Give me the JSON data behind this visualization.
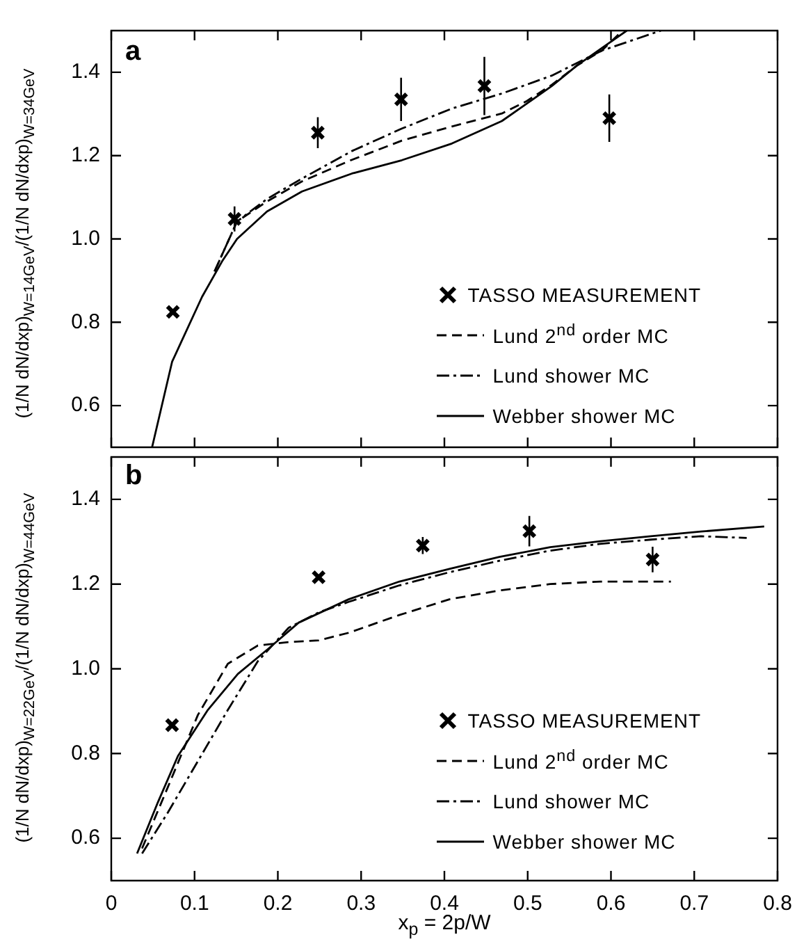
{
  "chart_data": [
    {
      "type": "line",
      "ylabel": "(1/N dN/dxp)$_{W=14GeV}$/(1/N dN/dxp)$_{W=34GeV}$",
      "annotations": [
        "a"
      ],
      "xlim": [
        0,
        0.8
      ],
      "xticks": [
        0,
        0.1,
        0.2,
        0.3,
        0.4,
        0.5,
        0.6,
        0.7,
        0.8
      ],
      "ylim": [
        0.5,
        1.5
      ],
      "yticks": [
        0.6,
        0.8,
        {
          "value": 1,
          "label": "1.0"
        },
        1.2,
        1.4
      ],
      "tick_labels": "y",
      "grid": false,
      "legend": "bottom right",
      "series": [
        {
          "name": "TASSO MEASUREMENT",
          "type": "scatter",
          "marker": "cross",
          "color": "#000000",
          "x": [
            0.074,
            0.148,
            0.248,
            0.348,
            0.448,
            0.598
          ],
          "values": [
            0.825,
            1.048,
            1.255,
            1.335,
            1.367,
            1.29
          ],
          "errors": [
            null,
            0.03,
            0.037,
            0.052,
            0.07,
            0.057
          ]
        },
        {
          "name": "Lund 2$^{nd}$ order MC",
          "type": "line",
          "marker": "none",
          "line_style": "dashed",
          "color": "#000000",
          "x": [
            0.124,
            0.151,
            0.187,
            0.229,
            0.289,
            0.349,
            0.409,
            0.469,
            0.499,
            0.529,
            0.559,
            0.589,
            0.614
          ],
          "values": [
            0.922,
            1.042,
            1.09,
            1.138,
            1.19,
            1.236,
            1.27,
            1.301,
            1.331,
            1.37,
            1.416,
            1.452,
            1.5
          ]
        },
        {
          "name": "Lund shower MC",
          "type": "line",
          "marker": "none",
          "line_style": "dashdot",
          "color": "#000000",
          "x": [
            0.124,
            0.151,
            0.187,
            0.229,
            0.289,
            0.349,
            0.409,
            0.469,
            0.529,
            0.559,
            0.589,
            0.66
          ],
          "values": [
            0.922,
            1.042,
            1.096,
            1.145,
            1.211,
            1.265,
            1.313,
            1.349,
            1.392,
            1.422,
            1.452,
            1.5
          ]
        },
        {
          "name": "Webber shower MC",
          "type": "line",
          "marker": "none",
          "line_style": "solid",
          "color": "#000000",
          "x": [
            0.049,
            0.073,
            0.109,
            0.133,
            0.151,
            0.187,
            0.229,
            0.289,
            0.349,
            0.409,
            0.469,
            0.499,
            0.529,
            0.559,
            0.589,
            0.619
          ],
          "values": [
            0.5,
            0.705,
            0.861,
            0.946,
            1.0,
            1.066,
            1.114,
            1.157,
            1.189,
            1.229,
            1.283,
            1.325,
            1.367,
            1.416,
            1.458,
            1.5
          ]
        }
      ]
    },
    {
      "type": "line",
      "xlabel": "x$_{p}$ = 2p/W",
      "ylabel": "(1/N dN/dxp)$_{W=22GeV}$/(1/N dN/dxp)$_{W=44GeV}$",
      "annotations": [
        "b"
      ],
      "xlim": [
        0,
        0.8
      ],
      "xticks": [
        0,
        0.1,
        0.2,
        0.3,
        0.4,
        0.5,
        0.6,
        0.7,
        0.8
      ],
      "ylim": [
        0.5,
        1.5
      ],
      "yticks": [
        0.6,
        0.8,
        {
          "value": 1,
          "label": "1.0"
        },
        1.2,
        1.4
      ],
      "grid": false,
      "legend": "bottom right",
      "series": [
        {
          "name": "TASSO MEASUREMENT",
          "type": "scatter",
          "marker": "cross",
          "color": "#000000",
          "x": [
            0.073,
            0.249,
            0.374,
            0.502,
            0.65
          ],
          "values": [
            0.867,
            1.216,
            1.291,
            1.325,
            1.258
          ],
          "errors": [
            null,
            null,
            0.02,
            0.036,
            0.03
          ]
        },
        {
          "name": "Lund 2$^{nd}$ order MC",
          "type": "line",
          "marker": "none",
          "line_style": "dashed",
          "color": "#000000",
          "x": [
            0.037,
            0.068,
            0.104,
            0.14,
            0.176,
            0.213,
            0.249,
            0.285,
            0.346,
            0.406,
            0.466,
            0.527,
            0.587,
            0.672
          ],
          "values": [
            0.576,
            0.721,
            0.891,
            1.012,
            1.055,
            1.063,
            1.067,
            1.085,
            1.127,
            1.164,
            1.185,
            1.2,
            1.206,
            1.206
          ]
        },
        {
          "name": "Lund shower MC",
          "type": "line",
          "marker": "none",
          "line_style": "dashdot",
          "color": "#000000",
          "x": [
            0.037,
            0.068,
            0.104,
            0.14,
            0.176,
            0.213,
            0.249,
            0.285,
            0.346,
            0.406,
            0.466,
            0.527,
            0.587,
            0.648,
            0.708,
            0.763
          ],
          "values": [
            0.564,
            0.661,
            0.782,
            0.903,
            1.018,
            1.097,
            1.133,
            1.158,
            1.197,
            1.228,
            1.255,
            1.279,
            1.295,
            1.305,
            1.313,
            1.309
          ]
        },
        {
          "name": "Webber shower MC",
          "type": "line",
          "marker": "none",
          "line_style": "solid",
          "color": "#000000",
          "x": [
            0.031,
            0.056,
            0.08,
            0.116,
            0.152,
            0.189,
            0.225,
            0.285,
            0.346,
            0.406,
            0.466,
            0.527,
            0.587,
            0.648,
            0.708,
            0.784
          ],
          "values": [
            0.564,
            0.685,
            0.794,
            0.903,
            0.988,
            1.048,
            1.109,
            1.164,
            1.206,
            1.236,
            1.264,
            1.287,
            1.301,
            1.313,
            1.324,
            1.336
          ]
        }
      ]
    }
  ]
}
